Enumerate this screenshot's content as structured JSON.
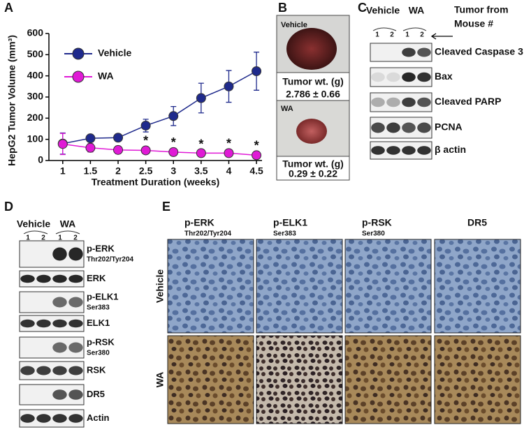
{
  "panel_labels": [
    "A",
    "B",
    "C",
    "D",
    "E"
  ],
  "chart_data": {
    "type": "line",
    "y_label": "HepG2 Tumor Volume (mm³)",
    "x_label": "Treatment Duration (weeks)",
    "x": [
      1,
      1.5,
      2,
      2.5,
      3,
      3.5,
      4,
      4.5
    ],
    "xlim": [
      0.75,
      4.6
    ],
    "xticks": [
      1,
      1.5,
      2,
      2.5,
      3,
      3.5,
      4,
      4.5
    ],
    "ylim": [
      0,
      600
    ],
    "yticks": [
      0,
      100,
      200,
      300,
      400,
      500,
      600
    ],
    "grid": false,
    "legend": "upper left",
    "series": [
      {
        "name": "Vehicle",
        "color": "#1f2a8c",
        "values": [
          80,
          105,
          108,
          165,
          210,
          295,
          350,
          422
        ],
        "errors": [
          50,
          15,
          10,
          30,
          45,
          70,
          75,
          90
        ]
      },
      {
        "name": "WA",
        "color": "#e01ad6",
        "values": [
          78,
          60,
          50,
          48,
          40,
          35,
          35,
          25
        ],
        "errors": [
          50,
          20,
          18,
          15,
          15,
          12,
          15,
          15
        ]
      }
    ],
    "annotations": [
      {
        "x": 2.5,
        "text": "*"
      },
      {
        "x": 3,
        "text": "*"
      },
      {
        "x": 3.5,
        "text": "*"
      },
      {
        "x": 4,
        "text": "*"
      },
      {
        "x": 4.5,
        "text": "*"
      }
    ]
  },
  "tumor_panel": {
    "groups": [
      {
        "label": "Vehicle",
        "caption": "Tumor wt. (g)",
        "value": "2.786 ± 0.66"
      },
      {
        "label": "WA",
        "caption": "Tumor wt. (g)",
        "value": "0.29 ± 0.22"
      }
    ]
  },
  "blot_c": {
    "groups": [
      "Vehicle",
      "WA"
    ],
    "lanes": [
      "1",
      "2",
      "1",
      "2"
    ],
    "note": [
      "Tumor from",
      "Mouse #"
    ],
    "rows": [
      "Cleaved Caspase 3",
      "Bax",
      "Cleaved PARP",
      "PCNA",
      "β actin"
    ]
  },
  "blot_d": {
    "groups": [
      "Vehicle",
      "WA"
    ],
    "lanes": [
      "1",
      "2",
      "1",
      "2"
    ],
    "rows": [
      {
        "label": "p-ERK",
        "sub": "Thr202/Tyr204"
      },
      {
        "label": "ERK"
      },
      {
        "label": "p-ELK1",
        "sub": "Ser383"
      },
      {
        "label": "ELK1"
      },
      {
        "label": "p-RSK",
        "sub": "Ser380"
      },
      {
        "label": "RSK"
      },
      {
        "label": "DR5"
      },
      {
        "label": "Actin"
      }
    ]
  },
  "ihc_e": {
    "columns": [
      {
        "label": "p-ERK",
        "sub": "Thr202/Tyr204"
      },
      {
        "label": "p-ELK1",
        "sub": "Ser383"
      },
      {
        "label": "p-RSK",
        "sub": "Ser380"
      },
      {
        "label": "DR5"
      }
    ],
    "rows": [
      "Vehicle",
      "WA"
    ]
  }
}
